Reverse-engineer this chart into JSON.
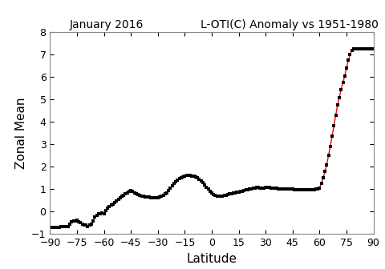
{
  "title_left": "January 2016",
  "title_right": "L-OTI(C) Anomaly vs 1951-1980",
  "xlabel": "Latitude",
  "ylabel": "Zonal Mean",
  "xlim": [
    -90,
    90
  ],
  "ylim": [
    -1,
    8
  ],
  "xticks": [
    -90,
    -75,
    -60,
    -45,
    -30,
    -15,
    0,
    15,
    30,
    45,
    60,
    75,
    90
  ],
  "yticks": [
    -1,
    0,
    1,
    2,
    3,
    4,
    5,
    6,
    7,
    8
  ],
  "line_color": "#ff0000",
  "marker_color": "#000000",
  "background_color": "#ffffff",
  "latitudes": [
    -90,
    -89,
    -88,
    -87,
    -86,
    -85,
    -84,
    -83,
    -82,
    -81,
    -80,
    -79,
    -78,
    -77,
    -76,
    -75,
    -74,
    -73,
    -72,
    -71,
    -70,
    -69,
    -68,
    -67,
    -66,
    -65,
    -64,
    -63,
    -62,
    -61,
    -60,
    -59,
    -58,
    -57,
    -56,
    -55,
    -54,
    -53,
    -52,
    -51,
    -50,
    -49,
    -48,
    -47,
    -46,
    -45,
    -44,
    -43,
    -42,
    -41,
    -40,
    -39,
    -38,
    -37,
    -36,
    -35,
    -34,
    -33,
    -32,
    -31,
    -30,
    -29,
    -28,
    -27,
    -26,
    -25,
    -24,
    -23,
    -22,
    -21,
    -20,
    -19,
    -18,
    -17,
    -16,
    -15,
    -14,
    -13,
    -12,
    -11,
    -10,
    -9,
    -8,
    -7,
    -6,
    -5,
    -4,
    -3,
    -2,
    -1,
    0,
    1,
    2,
    3,
    4,
    5,
    6,
    7,
    8,
    9,
    10,
    11,
    12,
    13,
    14,
    15,
    16,
    17,
    18,
    19,
    20,
    21,
    22,
    23,
    24,
    25,
    26,
    27,
    28,
    29,
    30,
    31,
    32,
    33,
    34,
    35,
    36,
    37,
    38,
    39,
    40,
    41,
    42,
    43,
    44,
    45,
    46,
    47,
    48,
    49,
    50,
    51,
    52,
    53,
    54,
    55,
    56,
    57,
    58,
    59,
    60,
    61,
    62,
    63,
    64,
    65,
    66,
    67,
    68,
    69,
    70,
    71,
    72,
    73,
    74,
    75,
    76,
    77,
    78,
    79,
    80,
    81,
    82,
    83,
    84,
    85,
    86,
    87,
    88,
    89,
    90
  ],
  "values": [
    -0.7,
    -0.7,
    -0.7,
    -0.7,
    -0.7,
    -0.7,
    -0.68,
    -0.68,
    -0.67,
    -0.66,
    -0.65,
    -0.55,
    -0.45,
    -0.42,
    -0.4,
    -0.38,
    -0.45,
    -0.5,
    -0.55,
    -0.58,
    -0.6,
    -0.65,
    -0.6,
    -0.55,
    -0.4,
    -0.25,
    -0.15,
    -0.1,
    -0.08,
    -0.05,
    -0.08,
    0.05,
    0.15,
    0.22,
    0.28,
    0.35,
    0.42,
    0.48,
    0.55,
    0.62,
    0.68,
    0.73,
    0.78,
    0.85,
    0.9,
    0.93,
    0.9,
    0.85,
    0.8,
    0.75,
    0.72,
    0.7,
    0.68,
    0.66,
    0.65,
    0.64,
    0.63,
    0.62,
    0.62,
    0.62,
    0.63,
    0.65,
    0.68,
    0.72,
    0.78,
    0.85,
    0.95,
    1.05,
    1.15,
    1.25,
    1.35,
    1.42,
    1.48,
    1.52,
    1.56,
    1.6,
    1.62,
    1.63,
    1.62,
    1.6,
    1.58,
    1.55,
    1.5,
    1.45,
    1.38,
    1.3,
    1.2,
    1.1,
    1.0,
    0.9,
    0.82,
    0.76,
    0.72,
    0.7,
    0.68,
    0.68,
    0.7,
    0.72,
    0.74,
    0.76,
    0.78,
    0.8,
    0.82,
    0.84,
    0.86,
    0.88,
    0.9,
    0.92,
    0.94,
    0.96,
    0.98,
    1.0,
    1.02,
    1.04,
    1.06,
    1.08,
    1.07,
    1.06,
    1.05,
    1.06,
    1.08,
    1.08,
    1.07,
    1.06,
    1.05,
    1.04,
    1.03,
    1.02,
    1.01,
    1.0,
    1.0,
    1.0,
    1.0,
    1.0,
    1.0,
    1.0,
    0.99,
    0.98,
    0.97,
    0.97,
    0.97,
    0.97,
    0.97,
    0.97,
    0.97,
    0.97,
    0.97,
    0.98,
    1.0,
    1.02,
    1.05,
    1.25,
    1.5,
    1.78,
    2.1,
    2.5,
    2.92,
    3.38,
    3.85,
    4.3,
    4.75,
    5.1,
    5.45,
    5.75,
    6.05,
    6.4,
    6.75,
    7.0,
    7.2,
    7.27,
    7.27,
    7.27,
    7.27,
    7.27,
    7.27,
    7.27,
    7.27,
    7.27,
    7.27,
    7.27,
    7.27
  ]
}
